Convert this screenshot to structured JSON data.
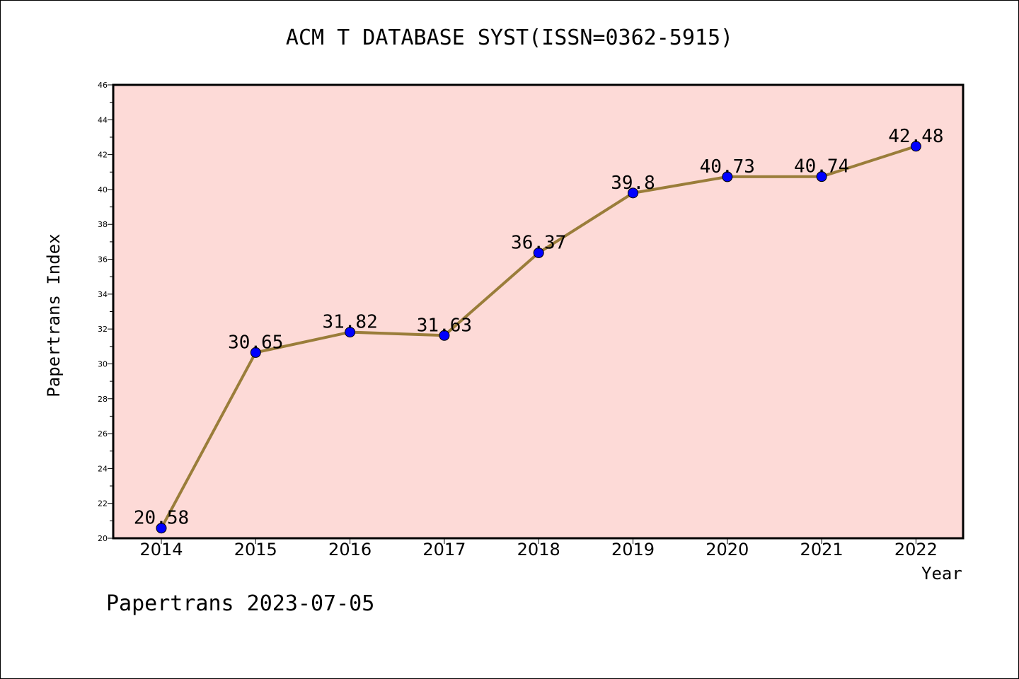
{
  "chart_data": {
    "type": "line",
    "title": "ACM T DATABASE SYST(ISSN=0362-5915)",
    "xlabel": "Year",
    "ylabel": "Papertrans Index",
    "categories": [
      "2014",
      "2015",
      "2016",
      "2017",
      "2018",
      "2019",
      "2020",
      "2021",
      "2022"
    ],
    "values": [
      20.58,
      30.65,
      31.82,
      31.63,
      36.37,
      39.8,
      40.73,
      40.74,
      42.48
    ],
    "data_labels": [
      "20.58",
      "30.65",
      "31.82",
      "31.63",
      "36.37",
      "39.8",
      "40.73",
      "40.74",
      "42.48"
    ],
    "ylim": [
      20,
      46
    ],
    "yticks": [
      "20",
      "22",
      "24",
      "26",
      "28",
      "30",
      "32",
      "34",
      "36",
      "38",
      "40",
      "42",
      "44",
      "46"
    ],
    "grid": false,
    "colors": {
      "plot_background": "#FDDAD7",
      "line": "#9A7D3A",
      "marker": "#0000FF"
    }
  },
  "footer": "Papertrans 2023-07-05"
}
